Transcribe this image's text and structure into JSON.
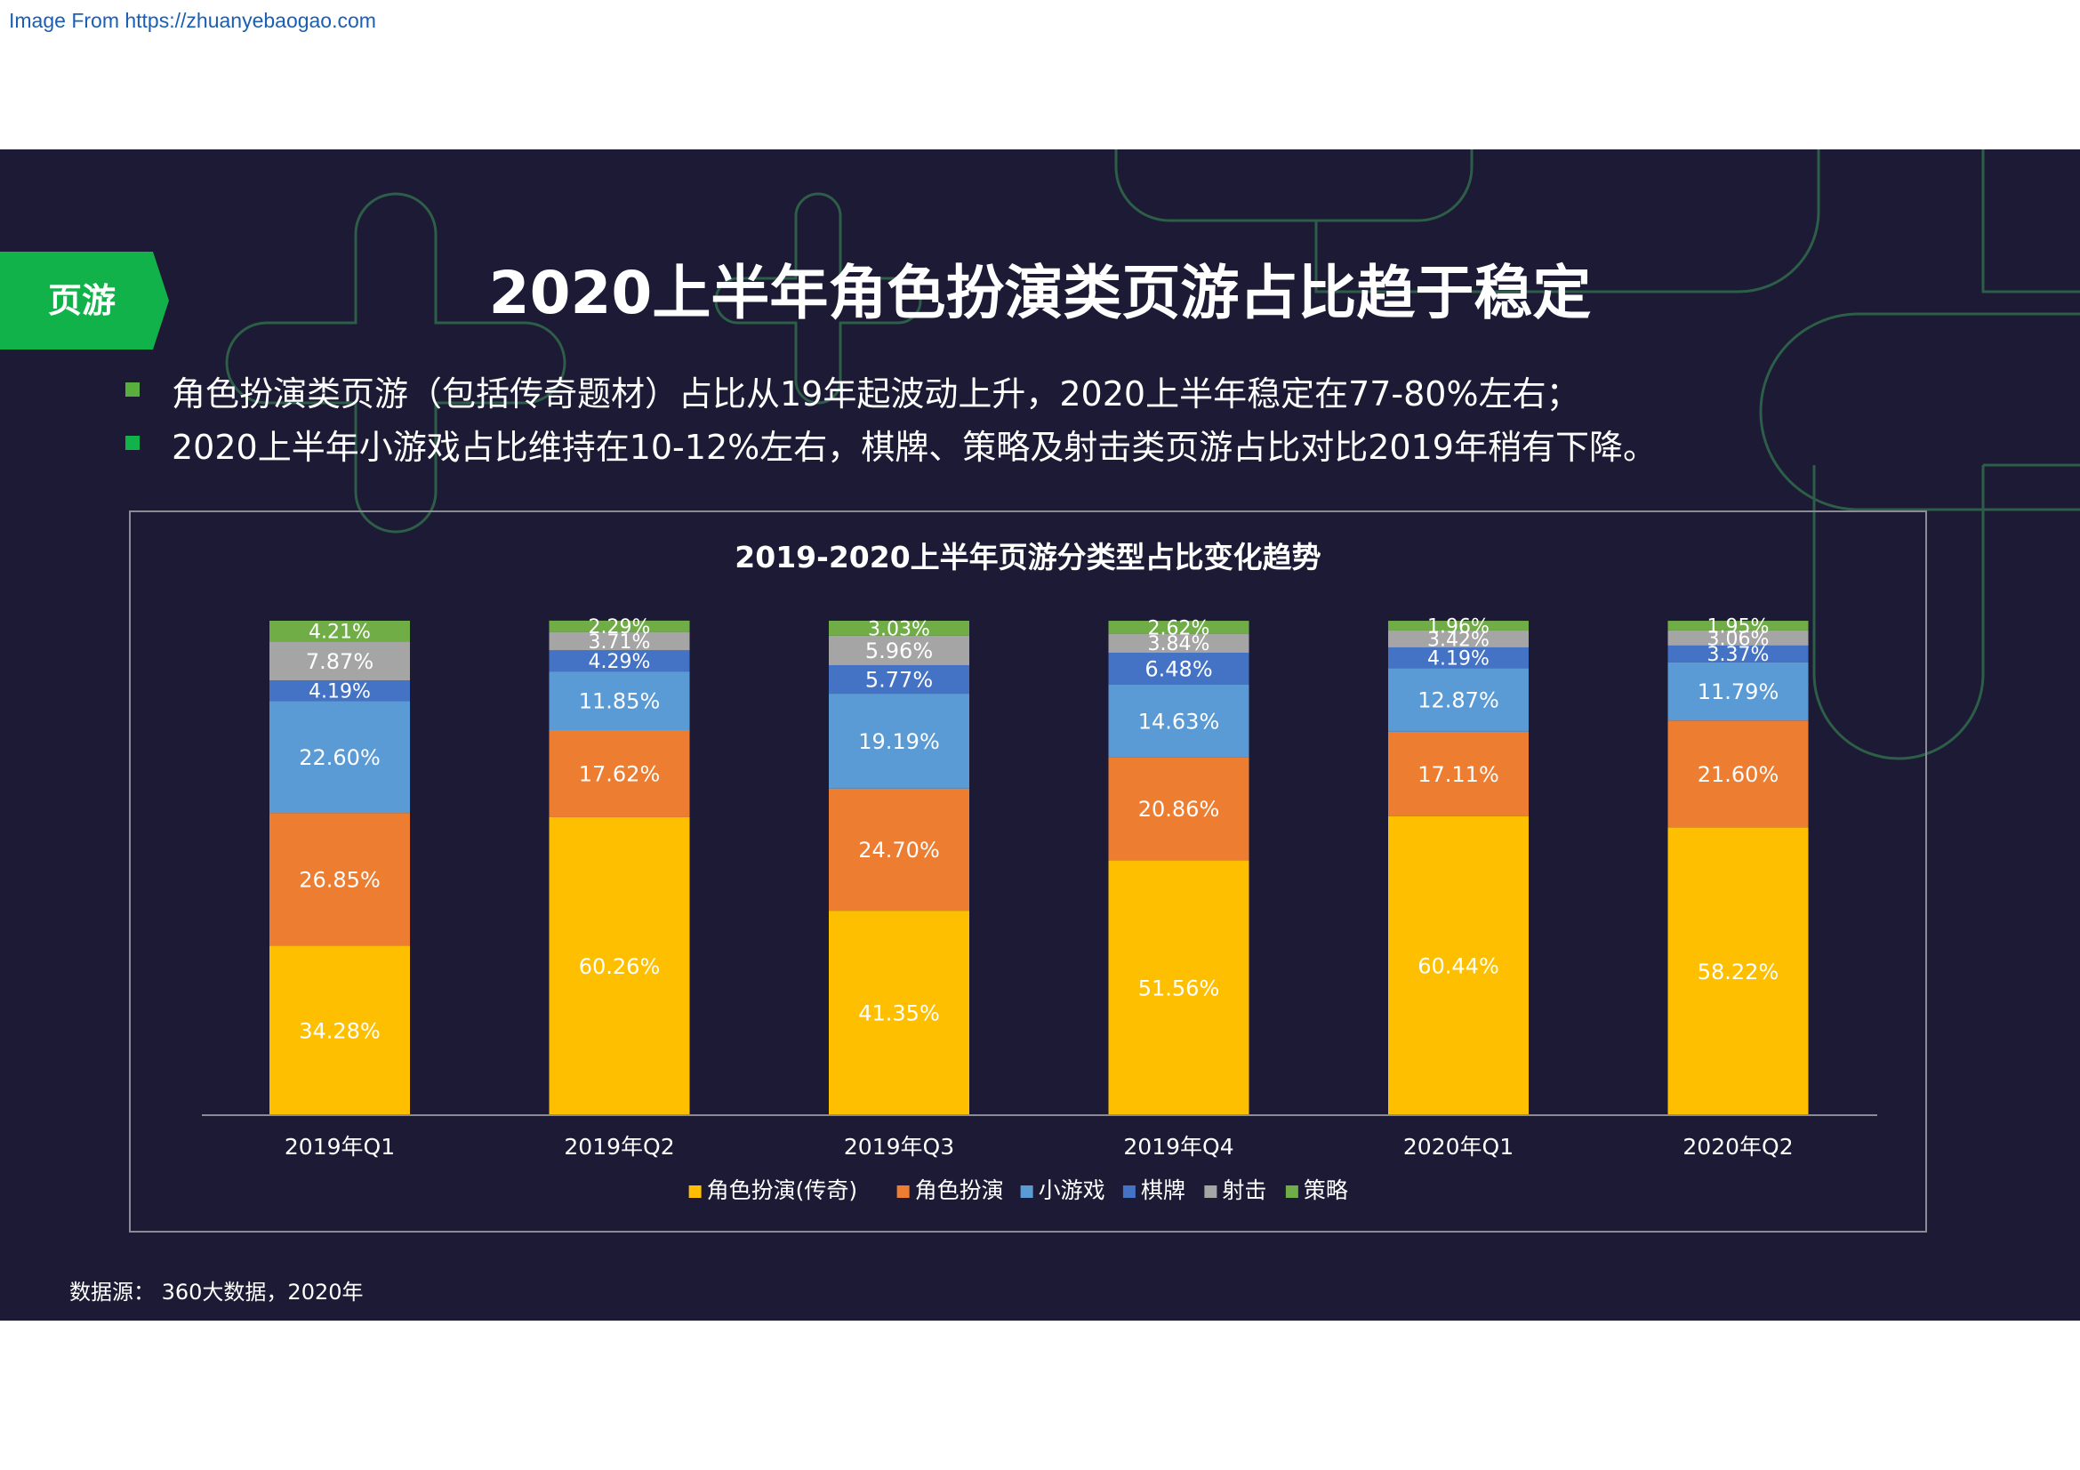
{
  "watermark": "Image From https://zhuanyebaogao.com",
  "tag": "页游",
  "title": "2020上半年角色扮演类页游占比趋于稳定",
  "bullets": [
    "角色扮演类页游（包括传奇题材）占比从19年起波动上升，2020上半年稳定在77-80%左右；",
    "2020上半年小游戏占比维持在10-12%左右，棋牌、策略及射击类页游占比对比2019年稍有下降。"
  ],
  "source": "数据源： 360大数据，2020年",
  "colors": {
    "background": "#1c1a34",
    "accent_green": "#12b24a"
  },
  "chart_data": {
    "type": "bar",
    "stacked": true,
    "title": "2019-2020上半年页游分类型占比变化趋势",
    "categories": [
      "2019年Q1",
      "2019年Q2",
      "2019年Q3",
      "2019年Q4",
      "2020年Q1",
      "2020年Q2"
    ],
    "series": [
      {
        "name": "角色扮演(传奇)",
        "color": "#fdbf00",
        "values": [
          34.28,
          60.26,
          41.35,
          51.56,
          60.44,
          58.22
        ]
      },
      {
        "name": "角色扮演",
        "color": "#ed7d31",
        "values": [
          26.85,
          17.62,
          24.7,
          20.86,
          17.11,
          21.6
        ]
      },
      {
        "name": "小游戏",
        "color": "#5b9bd5",
        "values": [
          22.6,
          11.85,
          19.19,
          14.63,
          12.87,
          11.79
        ]
      },
      {
        "name": "棋牌",
        "color": "#4472c4",
        "values": [
          4.19,
          4.29,
          5.77,
          6.48,
          4.19,
          3.37
        ]
      },
      {
        "name": "射击",
        "color": "#a5a5a5",
        "values": [
          7.87,
          3.71,
          5.96,
          3.84,
          3.42,
          3.06
        ]
      },
      {
        "name": "策略",
        "color": "#70ad47",
        "values": [
          4.21,
          2.29,
          3.03,
          2.62,
          1.96,
          1.95
        ]
      }
    ],
    "ylim": [
      0,
      100
    ],
    "legend": "bottom",
    "grid": false
  }
}
